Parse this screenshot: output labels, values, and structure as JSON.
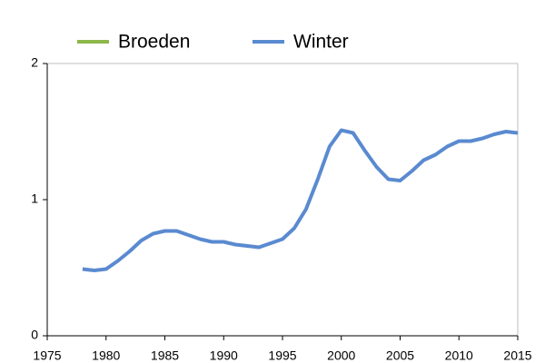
{
  "chart_data": {
    "type": "line",
    "x": [
      1978,
      1979,
      1980,
      1981,
      1982,
      1983,
      1984,
      1985,
      1986,
      1987,
      1988,
      1989,
      1990,
      1991,
      1992,
      1993,
      1994,
      1995,
      1996,
      1997,
      1998,
      1999,
      2000,
      2001,
      2002,
      2003,
      2004,
      2005,
      2006,
      2007,
      2008,
      2009,
      2010,
      2011,
      2012,
      2013,
      2014,
      2015
    ],
    "series": [
      {
        "name": "Broeden",
        "color": "#8cb84a",
        "values": [
          null,
          null,
          null,
          null,
          null,
          null,
          null,
          null,
          null,
          null,
          null,
          null,
          null,
          null,
          null,
          null,
          null,
          null,
          null,
          null,
          null,
          null,
          null,
          null,
          null,
          null,
          null,
          null,
          null,
          null,
          null,
          null,
          null,
          null,
          null,
          null,
          null,
          null
        ]
      },
      {
        "name": "Winter",
        "color": "#5a8ad0",
        "values": [
          0.49,
          0.48,
          0.49,
          0.55,
          0.62,
          0.7,
          0.75,
          0.77,
          0.77,
          0.74,
          0.71,
          0.69,
          0.69,
          0.67,
          0.66,
          0.65,
          0.68,
          0.71,
          0.79,
          0.93,
          1.15,
          1.39,
          1.51,
          1.49,
          1.36,
          1.24,
          1.15,
          1.14,
          1.21,
          1.29,
          1.33,
          1.39,
          1.43,
          1.43,
          1.45,
          1.48,
          1.5,
          1.49
        ]
      }
    ],
    "xlim": [
      1975,
      2015
    ],
    "xticks": [
      1975,
      1980,
      1985,
      1990,
      1995,
      2000,
      2005,
      2010,
      2015
    ],
    "ylim": [
      0,
      2
    ],
    "yticks": [
      0,
      1,
      2
    ],
    "legend": "top"
  }
}
